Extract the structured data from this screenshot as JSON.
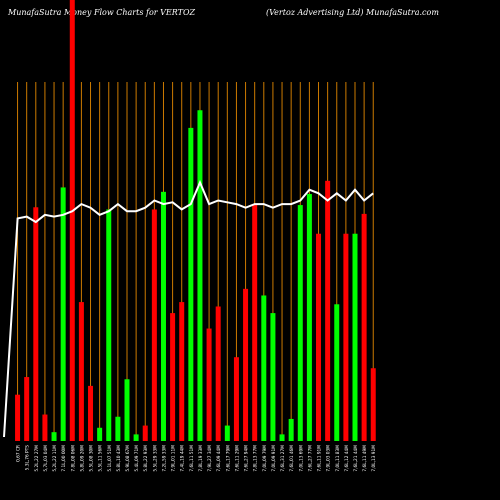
{
  "header": {
    "left": "MunafaSutra  Money Flow  Charts for VERTOZ",
    "right": "(Vertoz Advertising Ltd) MunafaSutra.com"
  },
  "colors": {
    "background": "#000000",
    "up": "#00ff00",
    "down": "#ff0000",
    "grid": "#cc7a00",
    "line": "#ffffff"
  },
  "chart_data": {
    "type": "bar",
    "title": "MunafaSutra  Money Flow  Charts for VERTOZ",
    "subtitle": "(Vertoz Advertising Ltd) MunafaSutra.com",
    "ylim": [
      0,
      100
    ],
    "series": [
      {
        "kind": "bar",
        "values": [
          10.5,
          14.5,
          53,
          6,
          2,
          57.5,
          100,
          31.5,
          12.5,
          3,
          52.5,
          5.5,
          14,
          1.5,
          3.5,
          52.5,
          56.5,
          29,
          31.5,
          71,
          75,
          25.5,
          30.5,
          3.5,
          19,
          34.5,
          53.5,
          33,
          29,
          1.5,
          5,
          53.5,
          56,
          47,
          59,
          31,
          47,
          47,
          51.5,
          16.5
        ],
        "directions": [
          "down",
          "down",
          "down",
          "down",
          "up",
          "up",
          "down",
          "down",
          "down",
          "up",
          "up",
          "up",
          "up",
          "up",
          "down",
          "down",
          "up",
          "down",
          "down",
          "up",
          "up",
          "down",
          "down",
          "up",
          "down",
          "down",
          "down",
          "up",
          "up",
          "up",
          "up",
          "up",
          "up",
          "down",
          "down",
          "up",
          "down",
          "up",
          "down",
          "down"
        ]
      },
      {
        "kind": "line",
        "values": [
          62,
          62.5,
          61,
          63,
          62.5,
          63,
          64,
          66,
          65,
          63,
          64,
          66,
          64,
          64,
          65,
          67,
          66,
          66.5,
          64.5,
          66,
          72,
          66,
          67,
          66.5,
          66,
          65,
          66,
          66,
          65,
          66,
          66,
          67,
          70,
          69,
          67,
          69,
          67,
          70,
          67,
          69
        ]
      }
    ],
    "categories": [
      "0,67 CR",
      "5.3L,76 PTS",
      "5.2L,22 27M",
      "5,7L,03 04M",
      "5,2L,22 11M",
      "7.1L,00 00M",
      "7.8L,08 06M",
      "5,8L,09 20M",
      "5.5L,08 30M",
      "5,5L,11 56M",
      "5.1L,07 51M",
      "5.8L,10 43M",
      "5.9L,08 67M",
      "5.4L,09 71M",
      "5.8L,22 93M",
      "5.5L,29 33M",
      "7,2L,59 33M",
      "7,9L,01 11M",
      "7,4L,19 44M",
      "7,6L,11 51M",
      "7,8L,19 33M",
      "7,9L,27 34M",
      "7,6L,09 44M",
      "7,6L,17 79M",
      "7,6L,11 29M",
      "7,6L,27 94M",
      "7,8L,13 77M",
      "7,0L,09 79M",
      "7,0L,09 91M",
      "7,6L,31 27M",
      "7,6L,01 46M",
      "7,0L,13 69M",
      "7,6L,27 77M",
      "7,6L,11 91M",
      "7,9L,03 03M",
      "7,0L,11 83M",
      "7,6L,12 44M",
      "7,6L,21 44M",
      "7,6L,11 49M",
      "7,0L,13 91M"
    ],
    "grid": true
  }
}
